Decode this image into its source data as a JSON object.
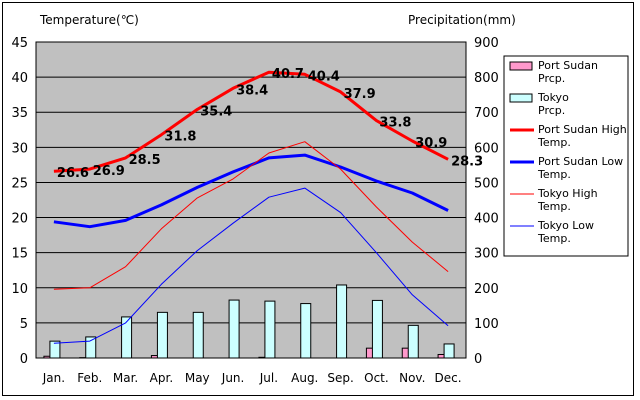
{
  "chart_data": {
    "type": "bar+line",
    "y_left_label": "Temperature(℃)",
    "y_right_label": "Precipitation(mm)",
    "y_left_lim": [
      0,
      45
    ],
    "y_left_ticks": [
      0,
      5,
      10,
      15,
      20,
      25,
      30,
      35,
      40,
      45
    ],
    "y_right_lim": [
      0,
      900
    ],
    "y_right_ticks": [
      0,
      100,
      200,
      300,
      400,
      500,
      600,
      700,
      800,
      900
    ],
    "categories": [
      "Jan.",
      "Feb.",
      "Mar.",
      "Apr.",
      "May",
      "Jun.",
      "Jul.",
      "Aug.",
      "Sep.",
      "Oct.",
      "Nov.",
      "Dec."
    ],
    "series": [
      {
        "name": "Port Sudan Prcp.",
        "kind": "bar",
        "axis": "right",
        "color": "#ff99cc",
        "values": [
          5,
          1,
          0,
          7,
          0,
          0,
          2,
          0,
          0,
          28,
          28,
          10
        ]
      },
      {
        "name": "Tokyo Prcp.",
        "kind": "bar",
        "axis": "right",
        "color": "#ccffff",
        "values": [
          48,
          60,
          117,
          130,
          130,
          165,
          162,
          155,
          208,
          164,
          93,
          40
        ]
      },
      {
        "name": "Port Sudan High Temp.",
        "kind": "line",
        "axis": "left",
        "color": "#ff0000",
        "width": 3,
        "values": [
          26.6,
          26.9,
          28.5,
          31.8,
          35.4,
          38.4,
          40.7,
          40.4,
          37.9,
          33.8,
          30.9,
          28.3
        ]
      },
      {
        "name": "Port Sudan Low Temp.",
        "kind": "line",
        "axis": "left",
        "color": "#0000ff",
        "width": 3,
        "values": [
          19.4,
          18.7,
          19.6,
          21.8,
          24.3,
          26.5,
          28.5,
          28.9,
          27.2,
          25.2,
          23.5,
          21.0
        ]
      },
      {
        "name": "Tokyo High Temp.",
        "kind": "line",
        "axis": "left",
        "color": "#ff0000",
        "width": 1,
        "values": [
          9.8,
          10.0,
          13.0,
          18.4,
          22.8,
          25.5,
          29.2,
          30.8,
          26.9,
          21.5,
          16.5,
          12.3
        ]
      },
      {
        "name": "Tokyo Low Temp.",
        "kind": "line",
        "axis": "left",
        "color": "#0000ff",
        "width": 1,
        "values": [
          2.1,
          2.4,
          5.0,
          10.5,
          15.3,
          19.2,
          22.9,
          24.2,
          20.7,
          15.0,
          9.0,
          4.6
        ]
      }
    ],
    "data_labels": {
      "series": "Port Sudan High Temp.",
      "values": [
        "26.6",
        "26.9",
        "28.5",
        "31.8",
        "35.4",
        "38.4",
        "40.7",
        "40.4",
        "37.9",
        "33.8",
        "30.9",
        "28.3"
      ]
    },
    "plot_background": "#c0c0c0",
    "grid": true,
    "legend_position": "right"
  }
}
